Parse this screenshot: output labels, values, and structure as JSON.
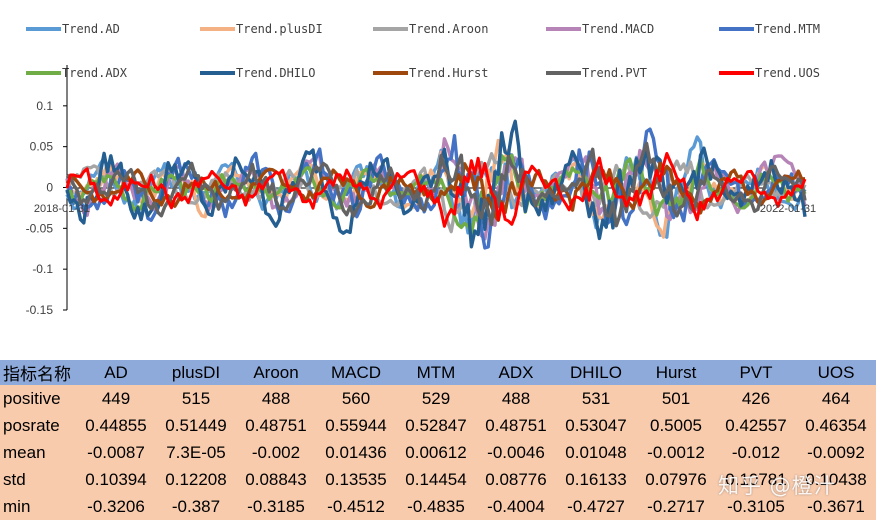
{
  "chart_data": {
    "type": "line",
    "title": "",
    "xlabel": "",
    "ylabel": "",
    "ylim": [
      -0.15,
      0.15
    ],
    "yticks": [
      0.1,
      0.05,
      0,
      -0.05,
      -0.1,
      -0.15
    ],
    "ytick_labels": [
      "0.1",
      "0.05",
      "0",
      "-0.05",
      "-0.1",
      "-0.15"
    ],
    "x_tick_labels": [
      "2018-01-31",
      "2022-01-31"
    ],
    "legend_position": "top",
    "series": [
      {
        "name": "Trend.AD",
        "color": "#5b9bd5",
        "seed": 11,
        "amp": 0.03,
        "values": []
      },
      {
        "name": "Trend.plusDI",
        "color": "#f4b183",
        "seed": 23,
        "amp": 0.028,
        "values": []
      },
      {
        "name": "Trend.Aroon",
        "color": "#a5a5a5",
        "seed": 37,
        "amp": 0.022,
        "values": []
      },
      {
        "name": "Trend.MACD",
        "color": "#b784b7",
        "seed": 41,
        "amp": 0.034,
        "values": []
      },
      {
        "name": "Trend.MTM",
        "color": "#4472c4",
        "seed": 53,
        "amp": 0.038,
        "values": []
      },
      {
        "name": "Trend.ADX",
        "color": "#70ad47",
        "seed": 67,
        "amp": 0.022,
        "values": []
      },
      {
        "name": "Trend.DHILO",
        "color": "#255e91",
        "seed": 79,
        "amp": 0.042,
        "values": []
      },
      {
        "name": "Trend.Hurst",
        "color": "#9e480e",
        "seed": 83,
        "amp": 0.02,
        "values": []
      },
      {
        "name": "Trend.PVT",
        "color": "#636363",
        "seed": 97,
        "amp": 0.03,
        "values": []
      },
      {
        "name": "Trend.UOS",
        "color": "#ff0000",
        "seed": 101,
        "amp": 0.024,
        "values": []
      }
    ]
  },
  "table": {
    "header_label": "指标名称",
    "columns": [
      "AD",
      "plusDI",
      "Aroon",
      "MACD",
      "MTM",
      "ADX",
      "DHILO",
      "Hurst",
      "PVT",
      "UOS"
    ],
    "rows": [
      {
        "label": "positive",
        "values": [
          "449",
          "515",
          "488",
          "560",
          "529",
          "488",
          "531",
          "501",
          "426",
          "464"
        ]
      },
      {
        "label": "posrate",
        "values": [
          "0.44855",
          "0.51449",
          "0.48751",
          "0.55944",
          "0.52847",
          "0.48751",
          "0.53047",
          "0.5005",
          "0.42557",
          "0.46354"
        ]
      },
      {
        "label": "mean",
        "values": [
          "-0.0087",
          "7.3E-05",
          "-0.002",
          "0.01436",
          "0.00612",
          "-0.0046",
          "0.01048",
          "-0.0012",
          "-0.012",
          "-0.0092"
        ]
      },
      {
        "label": "std",
        "values": [
          "0.10394",
          "0.12208",
          "0.08843",
          "0.13535",
          "0.14454",
          "0.08776",
          "0.16133",
          "0.07976",
          "0.10781",
          "0.10438"
        ]
      },
      {
        "label": "min",
        "values": [
          "-0.3206",
          "-0.387",
          "-0.3185",
          "-0.4512",
          "-0.4835",
          "-0.4004",
          "-0.4727",
          "-0.2717",
          "-0.3105",
          "-0.3671"
        ]
      }
    ]
  },
  "watermark": "知乎 @橙汁"
}
